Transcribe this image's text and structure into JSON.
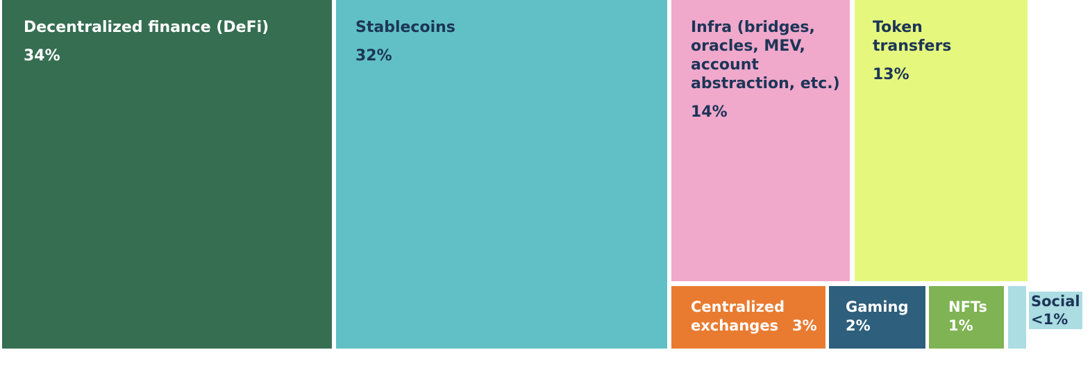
{
  "chart_data": {
    "type": "treemap",
    "title": "",
    "items": [
      {
        "label": "Decentralized finance (DeFi)",
        "value_text": "34%",
        "value": 34,
        "color": "#366e52",
        "text_color": "#ffffff"
      },
      {
        "label": "Stablecoins",
        "value_text": "32%",
        "value": 32,
        "color": "#60c0c5",
        "text_color": "#1c3557"
      },
      {
        "label": "Infra (bridges, oracles, MEV, account abstraction, etc.)",
        "value_text": "14%",
        "value": 14,
        "color": "#f0a8cb",
        "text_color": "#1c3557"
      },
      {
        "label": "Token transfers",
        "value_text": "13%",
        "value": 13,
        "color": "#e5f77d",
        "text_color": "#1c3557"
      },
      {
        "label": "Centralized exchanges",
        "value_text": "3%",
        "value": 3,
        "color": "#e97b30",
        "text_color": "#ffffff"
      },
      {
        "label": "Gaming",
        "value_text": "2%",
        "value": 2,
        "color": "#2e5f7c",
        "text_color": "#ffffff"
      },
      {
        "label": "NFTs",
        "value_text": "1%",
        "value": 1,
        "color": "#7fb353",
        "text_color": "#ffffff"
      },
      {
        "label": "Social",
        "value_text": "<1%",
        "value": 0.5,
        "color": "#abdde3",
        "text_color": "#1c3557"
      }
    ]
  }
}
